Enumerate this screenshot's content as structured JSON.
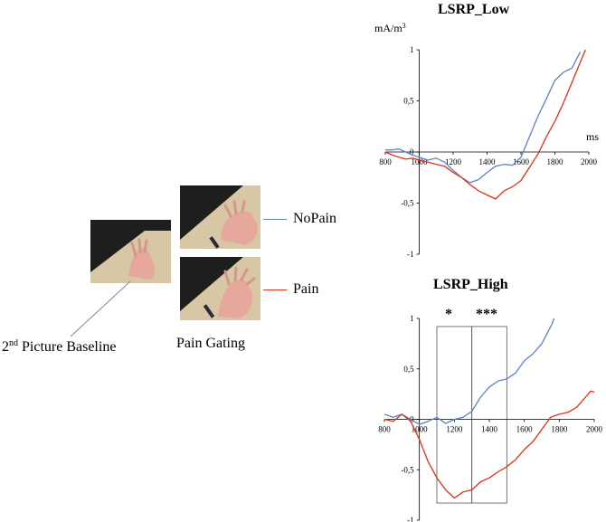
{
  "legend": {
    "nopain": {
      "label": "NoPain",
      "color": "#5b84c4"
    },
    "pain": {
      "label": "Pain",
      "color": "#e2311d"
    }
  },
  "captions": {
    "baseline_sup": "nd",
    "baseline_num": "2",
    "baseline_rest": " Picture Baseline",
    "gating": "Pain Gating"
  },
  "chart_data": [
    {
      "type": "line",
      "title": "LSRP_Low",
      "ylabel_main": "mA/m",
      "ylabel_sup": "3",
      "xlabel": "ms",
      "xlim": [
        800,
        2000
      ],
      "ylim": [
        -1,
        1
      ],
      "x_ticks": [
        "800",
        "1000",
        "1200",
        "1400",
        "1600",
        "1800",
        "2000"
      ],
      "y_ticks": [
        "1",
        "0,5",
        "0",
        "-0,5",
        "-1"
      ],
      "series": [
        {
          "name": "NoPain",
          "color": "#5b84c4",
          "x": [
            800,
            840,
            880,
            920,
            960,
            1000,
            1050,
            1100,
            1150,
            1200,
            1250,
            1300,
            1350,
            1400,
            1450,
            1500,
            1550,
            1600,
            1650,
            1700,
            1750,
            1800,
            1850,
            1900,
            1950
          ],
          "y": [
            0.02,
            0.02,
            0.03,
            0.0,
            -0.03,
            -0.05,
            -0.08,
            -0.06,
            -0.1,
            -0.18,
            -0.25,
            -0.3,
            -0.27,
            -0.2,
            -0.14,
            -0.12,
            -0.13,
            -0.05,
            0.15,
            0.35,
            0.52,
            0.7,
            0.78,
            0.82,
            0.98
          ]
        },
        {
          "name": "Pain",
          "color": "#e2311d",
          "x": [
            800,
            840,
            880,
            920,
            960,
            1000,
            1050,
            1100,
            1150,
            1200,
            1250,
            1300,
            1350,
            1400,
            1450,
            1500,
            1550,
            1600,
            1650,
            1700,
            1750,
            1800,
            1850,
            1900,
            1950,
            1980
          ],
          "y": [
            0.0,
            -0.03,
            -0.05,
            -0.07,
            -0.06,
            -0.08,
            -0.1,
            -0.12,
            -0.14,
            -0.2,
            -0.25,
            -0.32,
            -0.38,
            -0.42,
            -0.46,
            -0.38,
            -0.34,
            -0.28,
            -0.15,
            -0.02,
            0.15,
            0.3,
            0.48,
            0.68,
            0.88,
            1.0
          ]
        }
      ]
    },
    {
      "type": "line",
      "title": "LSRP_High",
      "xlim": [
        800,
        2000
      ],
      "ylim": [
        -1,
        1
      ],
      "x_ticks": [
        "800",
        "1000",
        "1200",
        "1400",
        "1600",
        "1800",
        "2000"
      ],
      "y_ticks": [
        "1",
        "0,5",
        "0",
        "-0,5",
        "-1"
      ],
      "significance": [
        {
          "label": "*",
          "x_range": [
            1100,
            1300
          ]
        },
        {
          "label": "***",
          "x_range": [
            1300,
            1500
          ]
        }
      ],
      "series": [
        {
          "name": "NoPain",
          "color": "#5b84c4",
          "x": [
            800,
            850,
            900,
            950,
            1000,
            1050,
            1100,
            1150,
            1200,
            1250,
            1300,
            1350,
            1400,
            1450,
            1500,
            1550,
            1600,
            1650,
            1700,
            1730,
            1760,
            1770
          ],
          "y": [
            0.05,
            0.02,
            0.05,
            0.0,
            -0.05,
            -0.02,
            0.02,
            -0.04,
            0.0,
            0.02,
            0.08,
            0.22,
            0.32,
            0.38,
            0.4,
            0.46,
            0.58,
            0.65,
            0.75,
            0.85,
            0.95,
            1.0
          ]
        },
        {
          "name": "Pain",
          "color": "#e2311d",
          "x": [
            800,
            850,
            900,
            950,
            1000,
            1050,
            1100,
            1150,
            1200,
            1250,
            1300,
            1350,
            1400,
            1450,
            1500,
            1550,
            1600,
            1650,
            1700,
            1750,
            1800,
            1850,
            1900,
            1950,
            1980,
            2000
          ],
          "y": [
            0.0,
            -0.02,
            0.05,
            -0.02,
            -0.2,
            -0.42,
            -0.58,
            -0.7,
            -0.78,
            -0.72,
            -0.7,
            -0.62,
            -0.58,
            -0.52,
            -0.47,
            -0.4,
            -0.3,
            -0.22,
            -0.1,
            0.02,
            0.05,
            0.07,
            0.12,
            0.22,
            0.28,
            0.27
          ]
        }
      ]
    }
  ]
}
